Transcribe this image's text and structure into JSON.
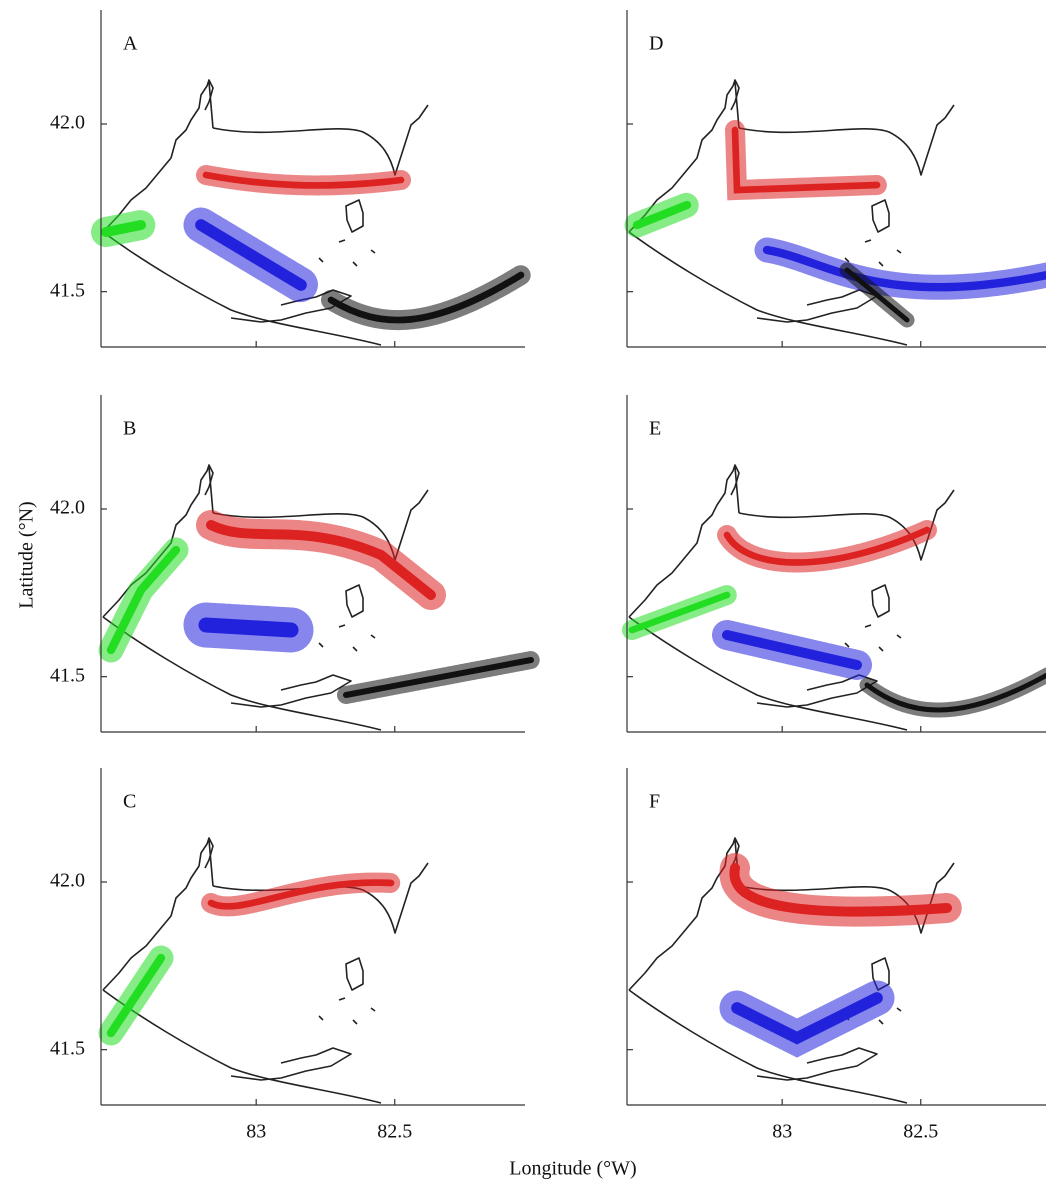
{
  "figure": {
    "ylabel": "Latitude (°N)",
    "xlabel": "Longitude (°W)",
    "xlim": [
      83.56,
      82.03
    ],
    "ylim": [
      41.335,
      42.34
    ],
    "xticks": [
      83,
      82.5
    ],
    "yticks": [
      {
        "value": 42,
        "label": "42.0"
      },
      41.5
    ],
    "panels": [
      {
        "label": "A",
        "colors": [
          "#22dd22",
          "#dd2222",
          "#2222dd",
          "#111111"
        ]
      },
      {
        "label": "B",
        "colors": [
          "#22dd22",
          "#dd2222",
          "#2222dd",
          "#111111"
        ]
      },
      {
        "label": "C",
        "colors": [
          "#22dd22",
          "#dd2222"
        ]
      },
      {
        "label": "D",
        "colors": [
          "#22dd22",
          "#dd2222",
          "#2222dd",
          "#111111"
        ]
      },
      {
        "label": "E",
        "colors": [
          "#22dd22",
          "#dd2222",
          "#2222dd",
          "#111111"
        ]
      },
      {
        "label": "F",
        "colors": [
          "#dd2222",
          "#2222dd"
        ]
      }
    ]
  }
}
